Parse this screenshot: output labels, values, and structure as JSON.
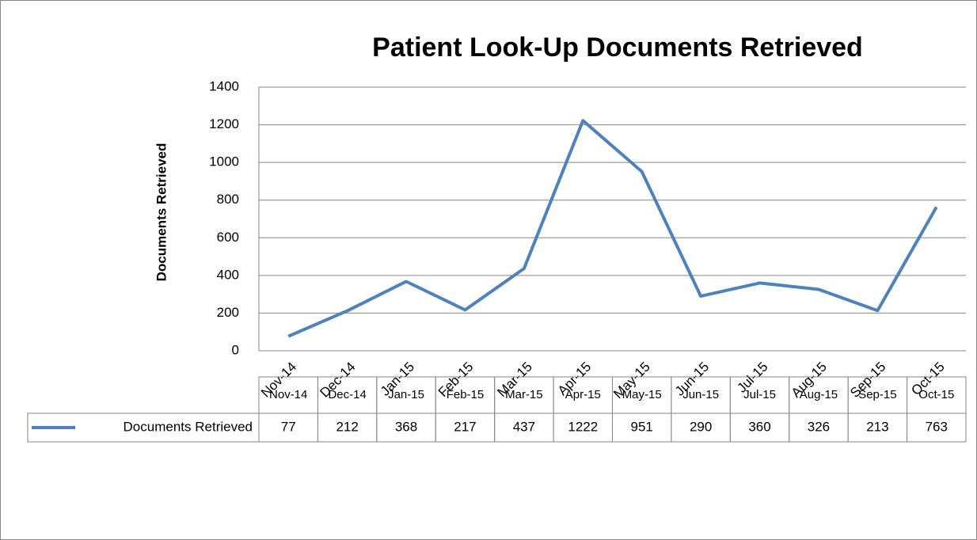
{
  "chart_data": {
    "type": "line",
    "title": "Patient Look-Up Documents Retrieved",
    "y_label": "Documents Retrieved",
    "categories": [
      "Nov-14",
      "Dec-14",
      "Jan-15",
      "Feb-15",
      "Mar-15",
      "Apr-15",
      "May-15",
      "Jun-15",
      "Jul-15",
      "Aug-15",
      "Sep-15",
      "Oct-15"
    ],
    "series": [
      {
        "name": "Documents Retrieved",
        "color": "#4f81bd",
        "values": [
          77,
          212,
          368,
          217,
          437,
          1222,
          951,
          290,
          360,
          326,
          213,
          763
        ]
      }
    ],
    "ylim": [
      0,
      1400
    ],
    "yticks": [
      0,
      200,
      400,
      600,
      800,
      1000,
      1200,
      1400
    ],
    "grid": true,
    "data_table": true
  }
}
